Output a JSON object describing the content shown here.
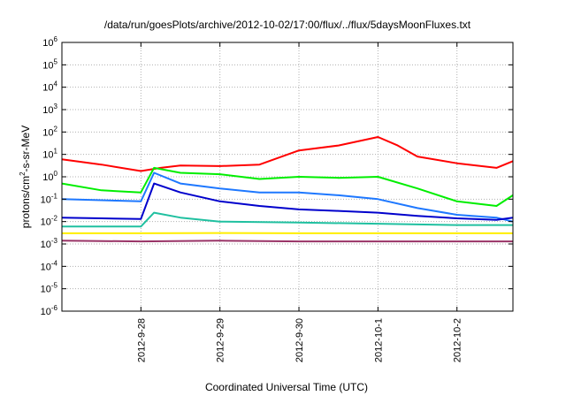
{
  "chart_data": {
    "type": "line",
    "title": "/data/run/goesPlots/archive/2012-10-02/17:00/flux/../flux/5daysMoonFluxes.txt",
    "xlabel": "Coordinated Universal Time (UTC)",
    "ylabel": "protons/cm2-s-sr-MeV",
    "yscale": "log",
    "ylim": [
      1e-06,
      1000000.0
    ],
    "xlim": [
      "2012-09-27 00:00",
      "2012-10-02 17:00"
    ],
    "grid": true,
    "x_ticks": [
      "2012-09-28",
      "2012-09-29",
      "2012-09-30",
      "2012-10-01",
      "2012-10-02"
    ],
    "x_tick_labels": [
      "2012-9-28",
      "2012-9-29",
      "2012-9-30",
      "2012-10-1",
      "2012-10-2"
    ],
    "y_ticks": [
      {
        "base": "10",
        "exp": "-6"
      },
      {
        "base": "10",
        "exp": "-5"
      },
      {
        "base": "10",
        "exp": "-4"
      },
      {
        "base": "10",
        "exp": "-3"
      },
      {
        "base": "10",
        "exp": "-2"
      },
      {
        "base": "10",
        "exp": "-1"
      },
      {
        "base": "10",
        "exp": "0"
      },
      {
        "base": "10",
        "exp": "1"
      },
      {
        "base": "10",
        "exp": "2"
      },
      {
        "base": "10",
        "exp": "3"
      },
      {
        "base": "10",
        "exp": "4"
      },
      {
        "base": "10",
        "exp": "5"
      },
      {
        "base": "10",
        "exp": "6"
      }
    ],
    "series": [
      {
        "color": "#ff0000",
        "x": [
          "2012-09-27 00:00",
          "2012-09-27 12:00",
          "2012-09-28 00:00",
          "2012-09-28 06:00",
          "2012-09-28 12:00",
          "2012-09-29 00:00",
          "2012-09-29 12:00",
          "2012-09-30 00:00",
          "2012-09-30 12:00",
          "2012-10-01 00:00",
          "2012-10-01 06:00",
          "2012-10-01 12:00",
          "2012-10-02 00:00",
          "2012-10-02 12:00",
          "2012-10-02 17:00"
        ],
        "y": [
          6,
          3.5,
          1.8,
          2.5,
          3.2,
          3,
          3.5,
          15,
          25,
          60,
          25,
          8,
          4,
          2.5,
          5
        ]
      },
      {
        "color": "#00ee00",
        "x": [
          "2012-09-27 00:00",
          "2012-09-27 12:00",
          "2012-09-28 00:00",
          "2012-09-28 04:00",
          "2012-09-28 12:00",
          "2012-09-29 00:00",
          "2012-09-29 12:00",
          "2012-09-30 00:00",
          "2012-09-30 12:00",
          "2012-10-01 00:00",
          "2012-10-01 12:00",
          "2012-10-02 00:00",
          "2012-10-02 12:00",
          "2012-10-02 17:00"
        ],
        "y": [
          0.5,
          0.25,
          0.2,
          2.5,
          1.5,
          1.3,
          0.8,
          1,
          0.9,
          1,
          0.3,
          0.08,
          0.05,
          0.15
        ]
      },
      {
        "color": "#1e78ff",
        "x": [
          "2012-09-27 00:00",
          "2012-09-27 12:00",
          "2012-09-28 00:00",
          "2012-09-28 04:00",
          "2012-09-28 12:00",
          "2012-09-29 00:00",
          "2012-09-29 12:00",
          "2012-09-30 00:00",
          "2012-09-30 12:00",
          "2012-10-01 00:00",
          "2012-10-01 12:00",
          "2012-10-02 00:00",
          "2012-10-02 12:00",
          "2012-10-02 17:00"
        ],
        "y": [
          0.1,
          0.09,
          0.08,
          1.5,
          0.5,
          0.3,
          0.2,
          0.2,
          0.15,
          0.1,
          0.04,
          0.02,
          0.015,
          0.01
        ]
      },
      {
        "color": "#0000cc",
        "x": [
          "2012-09-27 00:00",
          "2012-09-27 12:00",
          "2012-09-28 00:00",
          "2012-09-28 04:00",
          "2012-09-28 12:00",
          "2012-09-29 00:00",
          "2012-09-29 12:00",
          "2012-09-30 00:00",
          "2012-09-30 12:00",
          "2012-10-01 00:00",
          "2012-10-01 12:00",
          "2012-10-02 00:00",
          "2012-10-02 12:00",
          "2012-10-02 17:00"
        ],
        "y": [
          0.015,
          0.014,
          0.013,
          0.5,
          0.2,
          0.08,
          0.05,
          0.035,
          0.03,
          0.025,
          0.018,
          0.014,
          0.012,
          0.015
        ]
      },
      {
        "color": "#20c0a0",
        "x": [
          "2012-09-27 00:00",
          "2012-09-28 00:00",
          "2012-09-28 04:00",
          "2012-09-28 12:00",
          "2012-09-29 00:00",
          "2012-09-30 00:00",
          "2012-10-01 00:00",
          "2012-10-02 00:00",
          "2012-10-02 17:00"
        ],
        "y": [
          0.006,
          0.006,
          0.025,
          0.015,
          0.01,
          0.009,
          0.008,
          0.007,
          0.007
        ]
      },
      {
        "color": "#ffee00",
        "x": [
          "2012-09-27 00:00",
          "2012-09-28 00:00",
          "2012-09-29 00:00",
          "2012-09-30 00:00",
          "2012-10-01 00:00",
          "2012-10-02 00:00",
          "2012-10-02 17:00"
        ],
        "y": [
          0.003,
          0.003,
          0.0031,
          0.003,
          0.003,
          0.003,
          0.003
        ]
      },
      {
        "color": "#993366",
        "x": [
          "2012-09-27 00:00",
          "2012-09-28 00:00",
          "2012-09-29 00:00",
          "2012-09-30 00:00",
          "2012-10-01 00:00",
          "2012-10-02 00:00",
          "2012-10-02 17:00"
        ],
        "y": [
          0.0014,
          0.0013,
          0.0014,
          0.0013,
          0.0013,
          0.0013,
          0.0013
        ]
      }
    ]
  }
}
